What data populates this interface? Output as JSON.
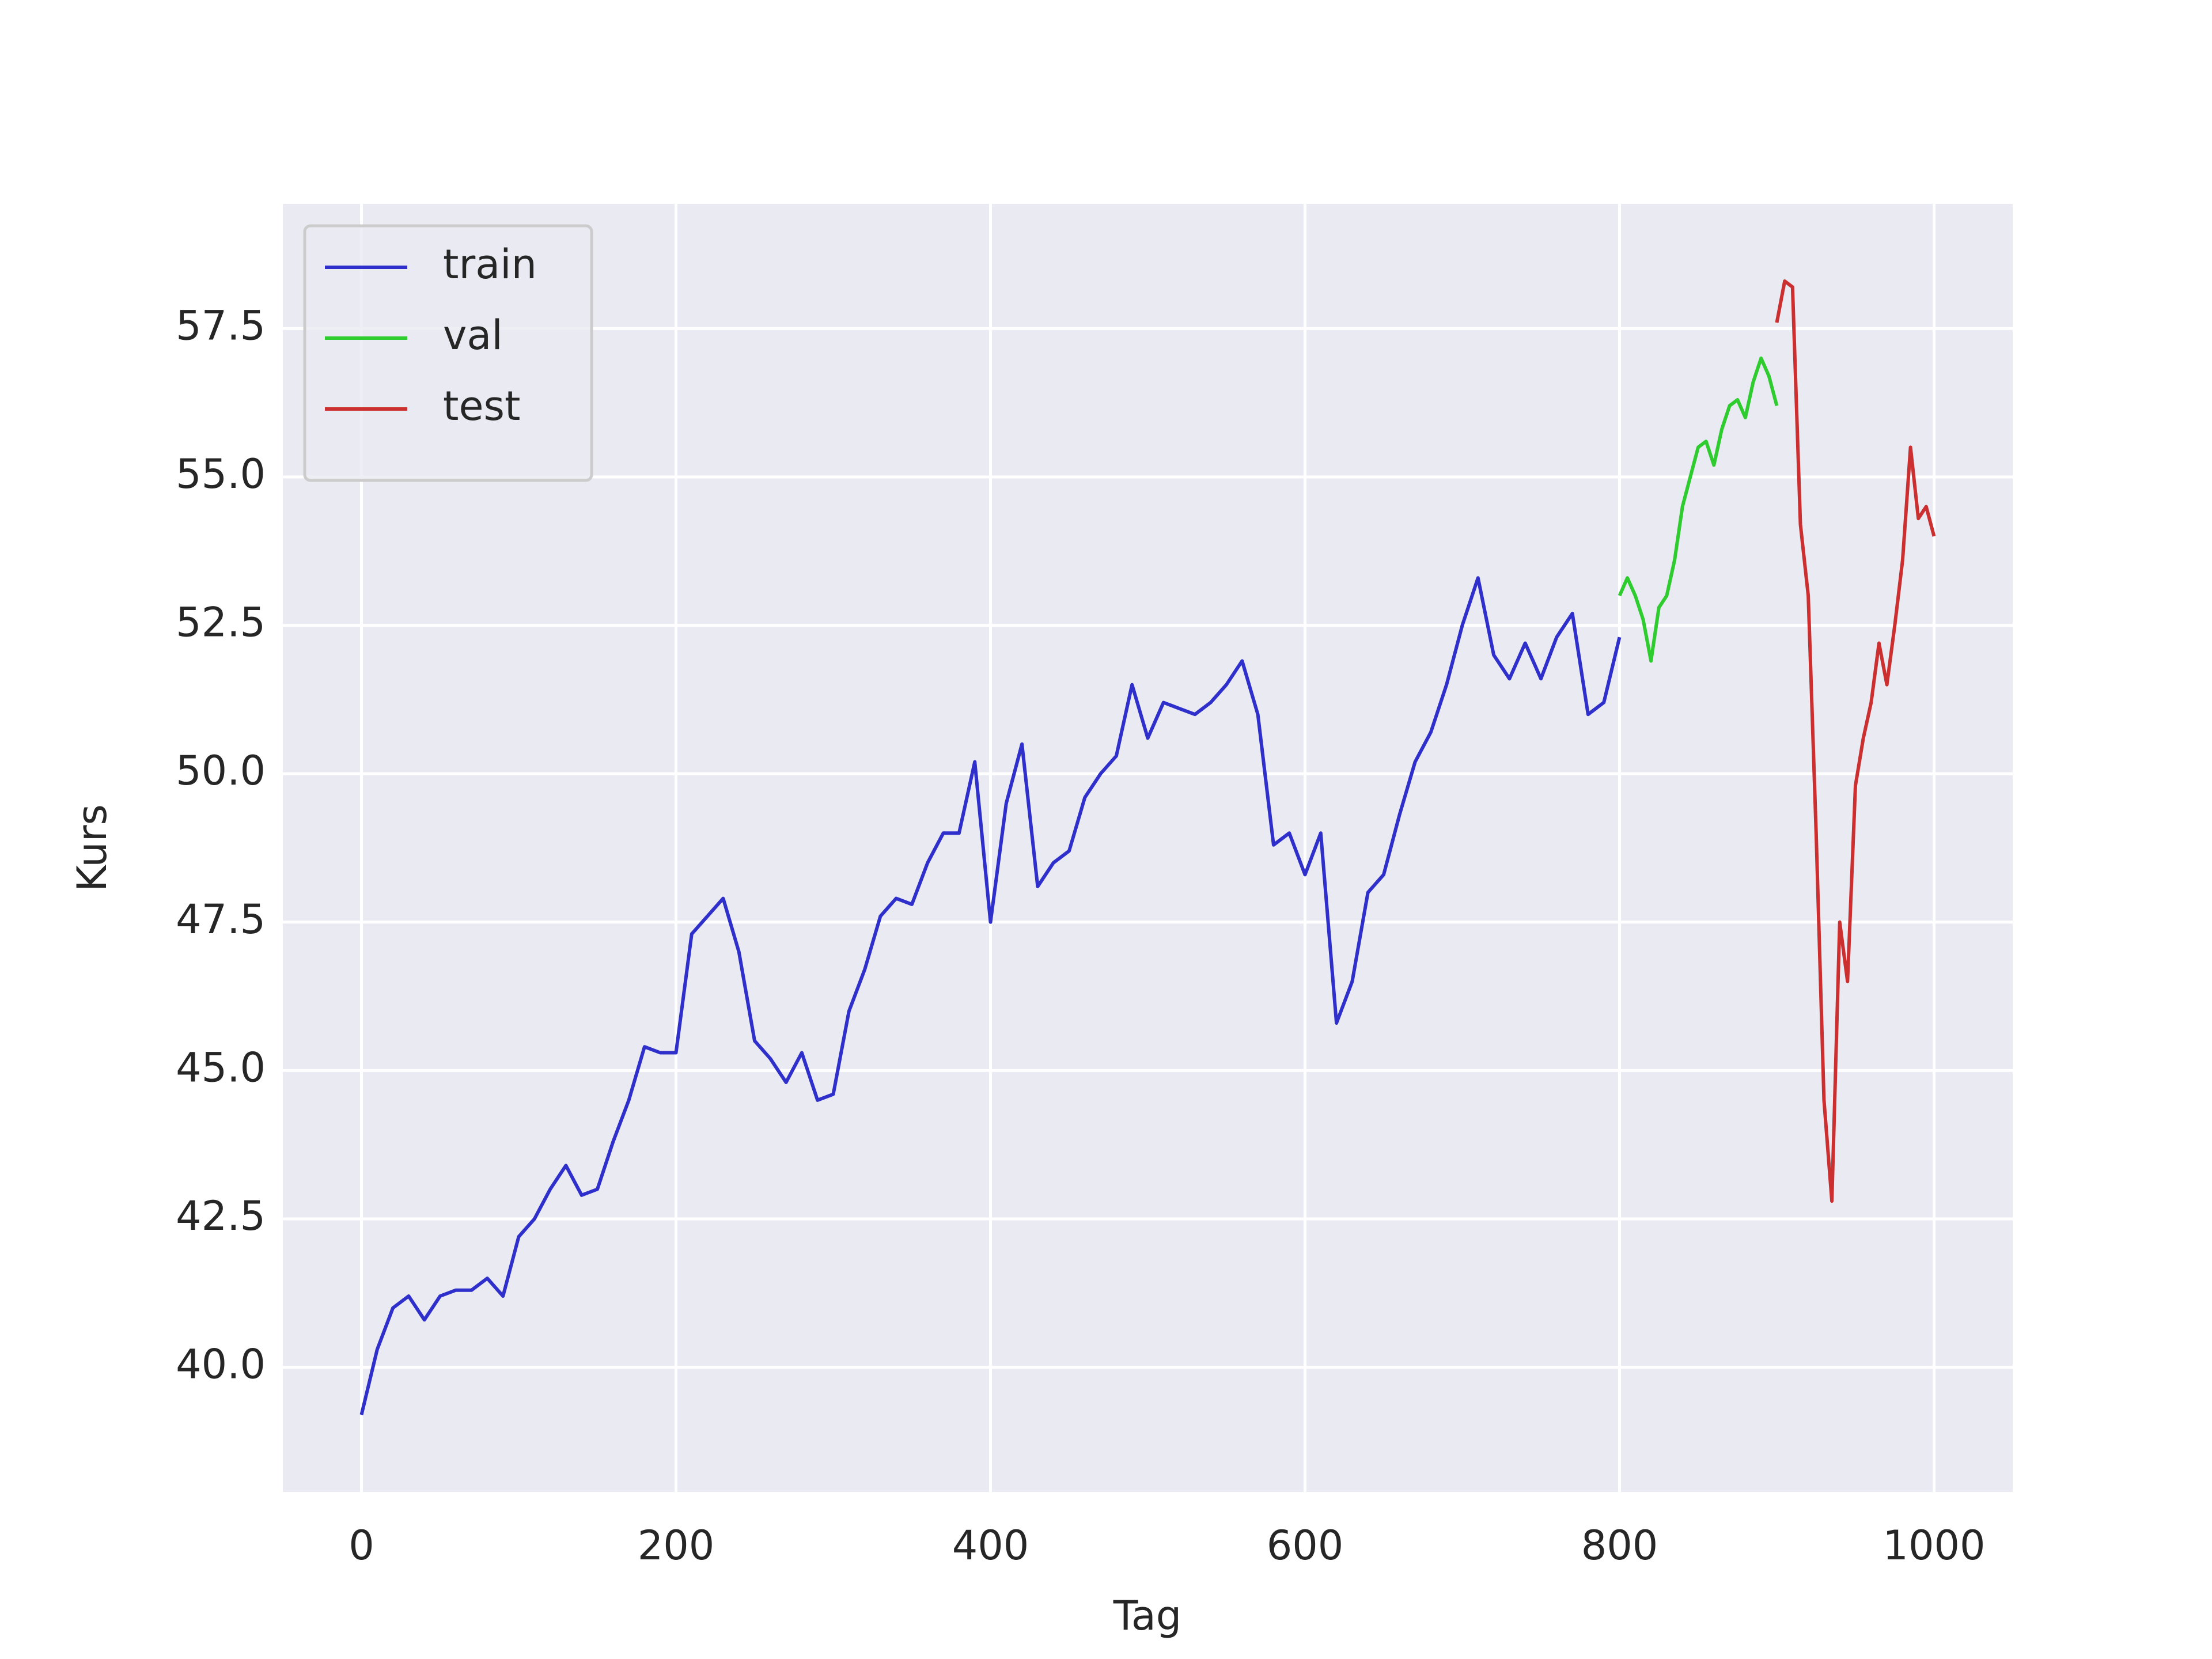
{
  "chart_data": {
    "type": "line",
    "x_label": "Tag",
    "y_label": "Kurs",
    "xlim": [
      -50,
      1050
    ],
    "ylim": [
      37.9,
      59.6
    ],
    "xticks": [
      0,
      200,
      400,
      600,
      800,
      1000
    ],
    "yticks": [
      {
        "value": 40.0,
        "label": "40.0"
      },
      42.5,
      {
        "value": 45.0,
        "label": "45.0"
      },
      47.5,
      {
        "value": 50.0,
        "label": "50.0"
      },
      52.5,
      {
        "value": 55.0,
        "label": "55.0"
      },
      57.5
    ],
    "grid": true,
    "legend": "upper left",
    "series": [
      {
        "name": "train",
        "color": "#2f2fcc",
        "x": [
          0,
          10,
          20,
          30,
          40,
          50,
          60,
          70,
          80,
          90,
          100,
          110,
          120,
          130,
          140,
          150,
          160,
          170,
          180,
          190,
          200,
          210,
          220,
          230,
          240,
          250,
          260,
          270,
          280,
          290,
          300,
          310,
          320,
          330,
          340,
          350,
          360,
          370,
          380,
          390,
          400,
          410,
          420,
          430,
          440,
          450,
          460,
          470,
          480,
          490,
          500,
          510,
          520,
          530,
          540,
          550,
          560,
          570,
          580,
          590,
          600,
          610,
          620,
          630,
          640,
          650,
          660,
          670,
          680,
          690,
          700,
          710,
          720,
          730,
          740,
          750,
          760,
          770,
          780,
          790,
          800
        ],
        "values": [
          39.2,
          40.3,
          41.0,
          41.2,
          40.8,
          41.2,
          41.3,
          41.3,
          41.5,
          41.2,
          42.2,
          42.5,
          43.0,
          43.4,
          42.9,
          43.0,
          43.8,
          44.5,
          45.4,
          45.3,
          45.3,
          47.3,
          47.6,
          47.9,
          47.0,
          45.5,
          45.2,
          44.8,
          45.3,
          44.5,
          44.6,
          46.0,
          46.7,
          47.6,
          47.9,
          47.8,
          48.5,
          49.0,
          49.0,
          50.2,
          47.5,
          49.5,
          50.5,
          48.1,
          48.5,
          48.7,
          49.6,
          50.0,
          50.3,
          51.5,
          50.6,
          51.2,
          51.1,
          51.0,
          51.2,
          51.5,
          51.9,
          51.0,
          48.8,
          49.0,
          48.3,
          49.0,
          45.8,
          46.5,
          48.0,
          48.3,
          49.3,
          50.2,
          50.7,
          51.5,
          52.5,
          53.3,
          52.0,
          51.6,
          52.2,
          51.6,
          52.3,
          52.7,
          51.0,
          51.2,
          52.3
        ]
      },
      {
        "name": "val",
        "color": "#2ecc2e",
        "x": [
          800,
          805,
          810,
          815,
          820,
          825,
          830,
          835,
          840,
          845,
          850,
          855,
          860,
          865,
          870,
          875,
          880,
          885,
          890,
          895,
          900
        ],
        "values": [
          53.0,
          53.3,
          53.0,
          52.6,
          51.9,
          52.8,
          53.0,
          53.6,
          54.5,
          55.0,
          55.5,
          55.6,
          55.2,
          55.8,
          56.2,
          56.3,
          56.0,
          56.6,
          57.0,
          56.7,
          56.2
        ]
      },
      {
        "name": "test",
        "color": "#cc2f2f",
        "x": [
          900,
          905,
          910,
          915,
          920,
          925,
          930,
          935,
          940,
          945,
          950,
          955,
          960,
          965,
          970,
          975,
          980,
          985,
          990,
          995,
          1000
        ],
        "values": [
          57.6,
          58.3,
          58.2,
          54.2,
          53.0,
          49.0,
          44.5,
          42.8,
          47.5,
          46.5,
          49.8,
          50.6,
          51.2,
          52.2,
          51.5,
          52.5,
          53.6,
          55.5,
          54.3,
          54.5,
          54.0
        ]
      }
    ]
  }
}
